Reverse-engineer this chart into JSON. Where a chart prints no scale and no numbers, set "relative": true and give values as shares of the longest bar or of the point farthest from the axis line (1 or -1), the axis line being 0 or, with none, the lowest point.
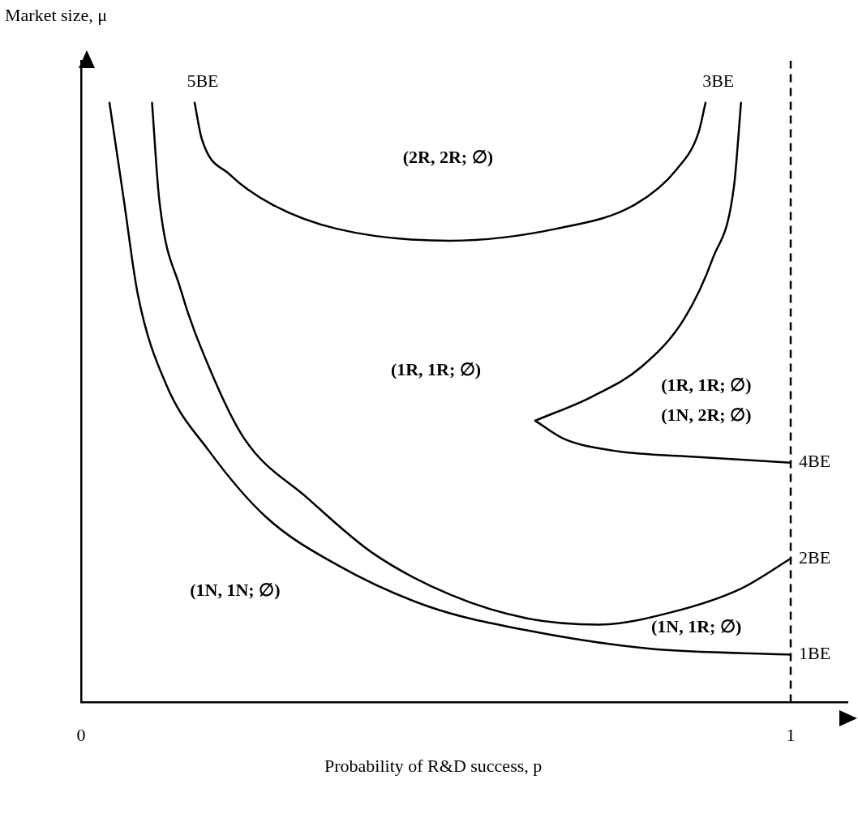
{
  "chart_data": {
    "type": "line",
    "relative": true,
    "xlabel": "Probability of R&D success, p",
    "ylabel": "Market size, μ",
    "xlim": [
      0,
      1.08
    ],
    "xticks": [
      0,
      1
    ],
    "grid": false,
    "legend": false,
    "marker": "none",
    "line_style": "solid",
    "series": [
      {
        "name": "1BE",
        "color": "#000000",
        "x": [
          0.04,
          0.06,
          0.08,
          0.12,
          0.18,
          0.26,
          0.36,
          0.49,
          0.63,
          0.8,
          1
        ],
        "values": [
          1.0,
          0.84,
          0.68,
          0.53,
          0.42,
          0.31,
          0.23,
          0.16,
          0.12,
          0.09,
          0.08
        ]
      },
      {
        "name": "2BE",
        "color": "#000000",
        "x": [
          0.1,
          0.11,
          0.14,
          0.18,
          0.23,
          0.32,
          0.41,
          0.52,
          0.63,
          0.73,
          0.83,
          0.93,
          1
        ],
        "values": [
          1.0,
          0.84,
          0.69,
          0.56,
          0.44,
          0.34,
          0.25,
          0.18,
          0.14,
          0.13,
          0.15,
          0.19,
          0.24
        ]
      },
      {
        "name": "5BE",
        "color": "#000000",
        "x": [
          0.16,
          0.17,
          0.21,
          0.27,
          0.36,
          0.52,
          0.67,
          0.78,
          0.84,
          0.87,
          0.88
        ],
        "values": [
          1.0,
          0.94,
          0.88,
          0.83,
          0.79,
          0.77,
          0.79,
          0.83,
          0.89,
          0.95,
          1.0
        ]
      },
      {
        "name": "3BE",
        "color": "#000000",
        "x": [
          0.93,
          0.92,
          0.89,
          0.85,
          0.79,
          0.72,
          0.64
        ],
        "values": [
          1.0,
          0.86,
          0.74,
          0.64,
          0.56,
          0.51,
          0.47
        ]
      },
      {
        "name": "4BE",
        "color": "#000000",
        "x": [
          0.64,
          0.68,
          0.75,
          0.86,
          1
        ],
        "values": [
          0.47,
          0.44,
          0.42,
          0.41,
          0.4
        ]
      }
    ],
    "ref_lines": [
      {
        "axis": "x",
        "value": 1,
        "line_style": "dashed",
        "color": "#000000"
      }
    ],
    "annotations": [
      "(2R, 2R; ∅)",
      "(1R, 1R; ∅)",
      "(1R, 1R; ∅)",
      "(1N, 2R; ∅)",
      "(1N, 1N; ∅)",
      "(1N, 1R; ∅)"
    ]
  }
}
